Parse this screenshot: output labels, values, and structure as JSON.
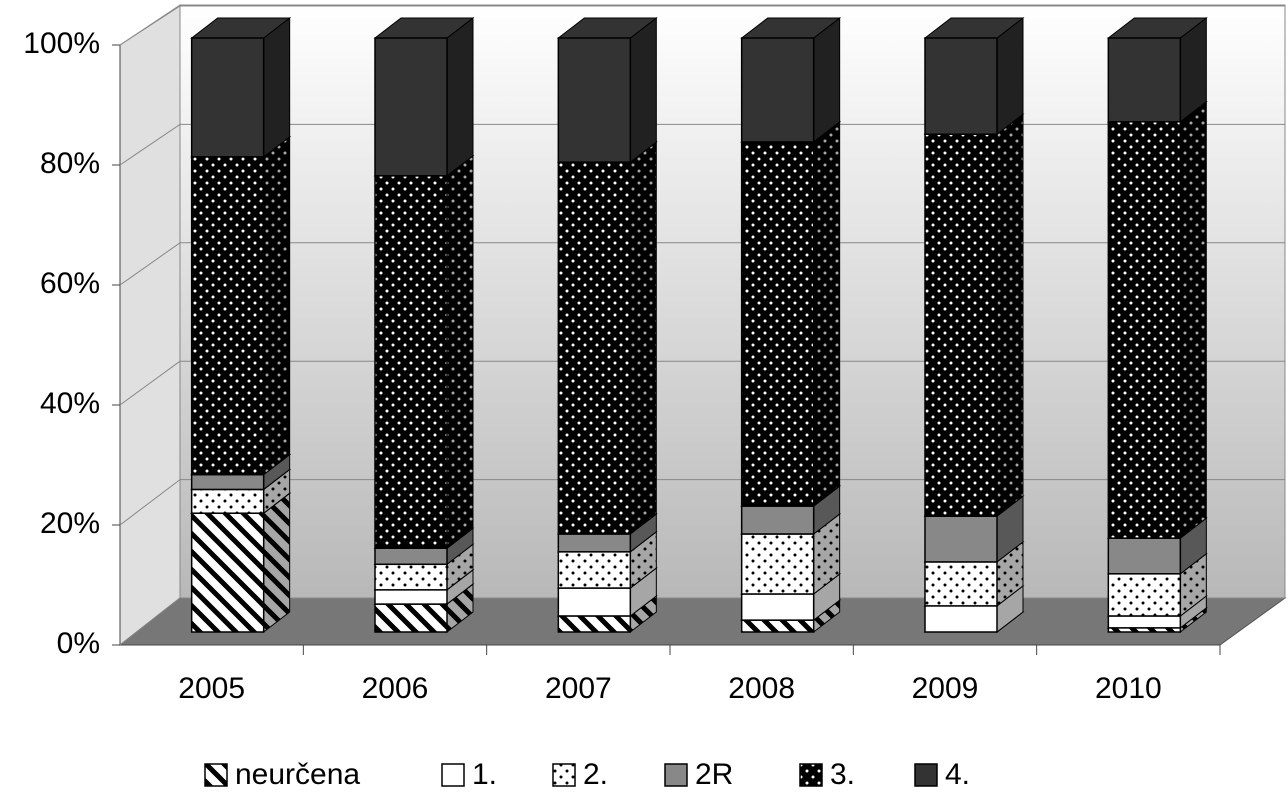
{
  "chart_data": {
    "type": "bar3d_stacked",
    "categories": [
      "2005",
      "2006",
      "2007",
      "2008",
      "2009",
      "2010"
    ],
    "series": [
      {
        "name": "neurčena",
        "color": "#ffffff",
        "pattern": "hatch",
        "values": [
          20,
          4.7,
          2.7,
          2.0,
          0,
          0.7
        ]
      },
      {
        "name": "1.",
        "color": "#ffffff",
        "pattern": "solid",
        "values": [
          0,
          2.4,
          4.7,
          4.4,
          4.4,
          2.0
        ]
      },
      {
        "name": "2.",
        "color": "#ffffff",
        "pattern": "dots",
        "values": [
          4,
          4.3,
          6.1,
          10.1,
          7.4,
          7.1
        ]
      },
      {
        "name": "2R",
        "color": "#888888",
        "pattern": "solid",
        "values": [
          2.5,
          2.7,
          3,
          4.7,
          7.7,
          6.0
        ]
      },
      {
        "name": "3.",
        "color": "#000000",
        "pattern": "dots",
        "values": [
          53.5,
          62.7,
          62.6,
          61.3,
          64.3,
          70.1
        ]
      },
      {
        "name": "4.",
        "color": "#333333",
        "pattern": "solid",
        "values": [
          20,
          23.2,
          20.9,
          17.5,
          16.2,
          14.1
        ]
      }
    ],
    "ylim": [
      0,
      100
    ],
    "yticks": [
      {
        "value": 0,
        "label": "0%"
      },
      {
        "value": 20,
        "label": "20%"
      },
      {
        "value": 40,
        "label": "40%"
      },
      {
        "value": 60,
        "label": "60%"
      },
      {
        "value": 80,
        "label": "80%"
      },
      {
        "value": 100,
        "label": "100%"
      }
    ],
    "grid": true
  }
}
